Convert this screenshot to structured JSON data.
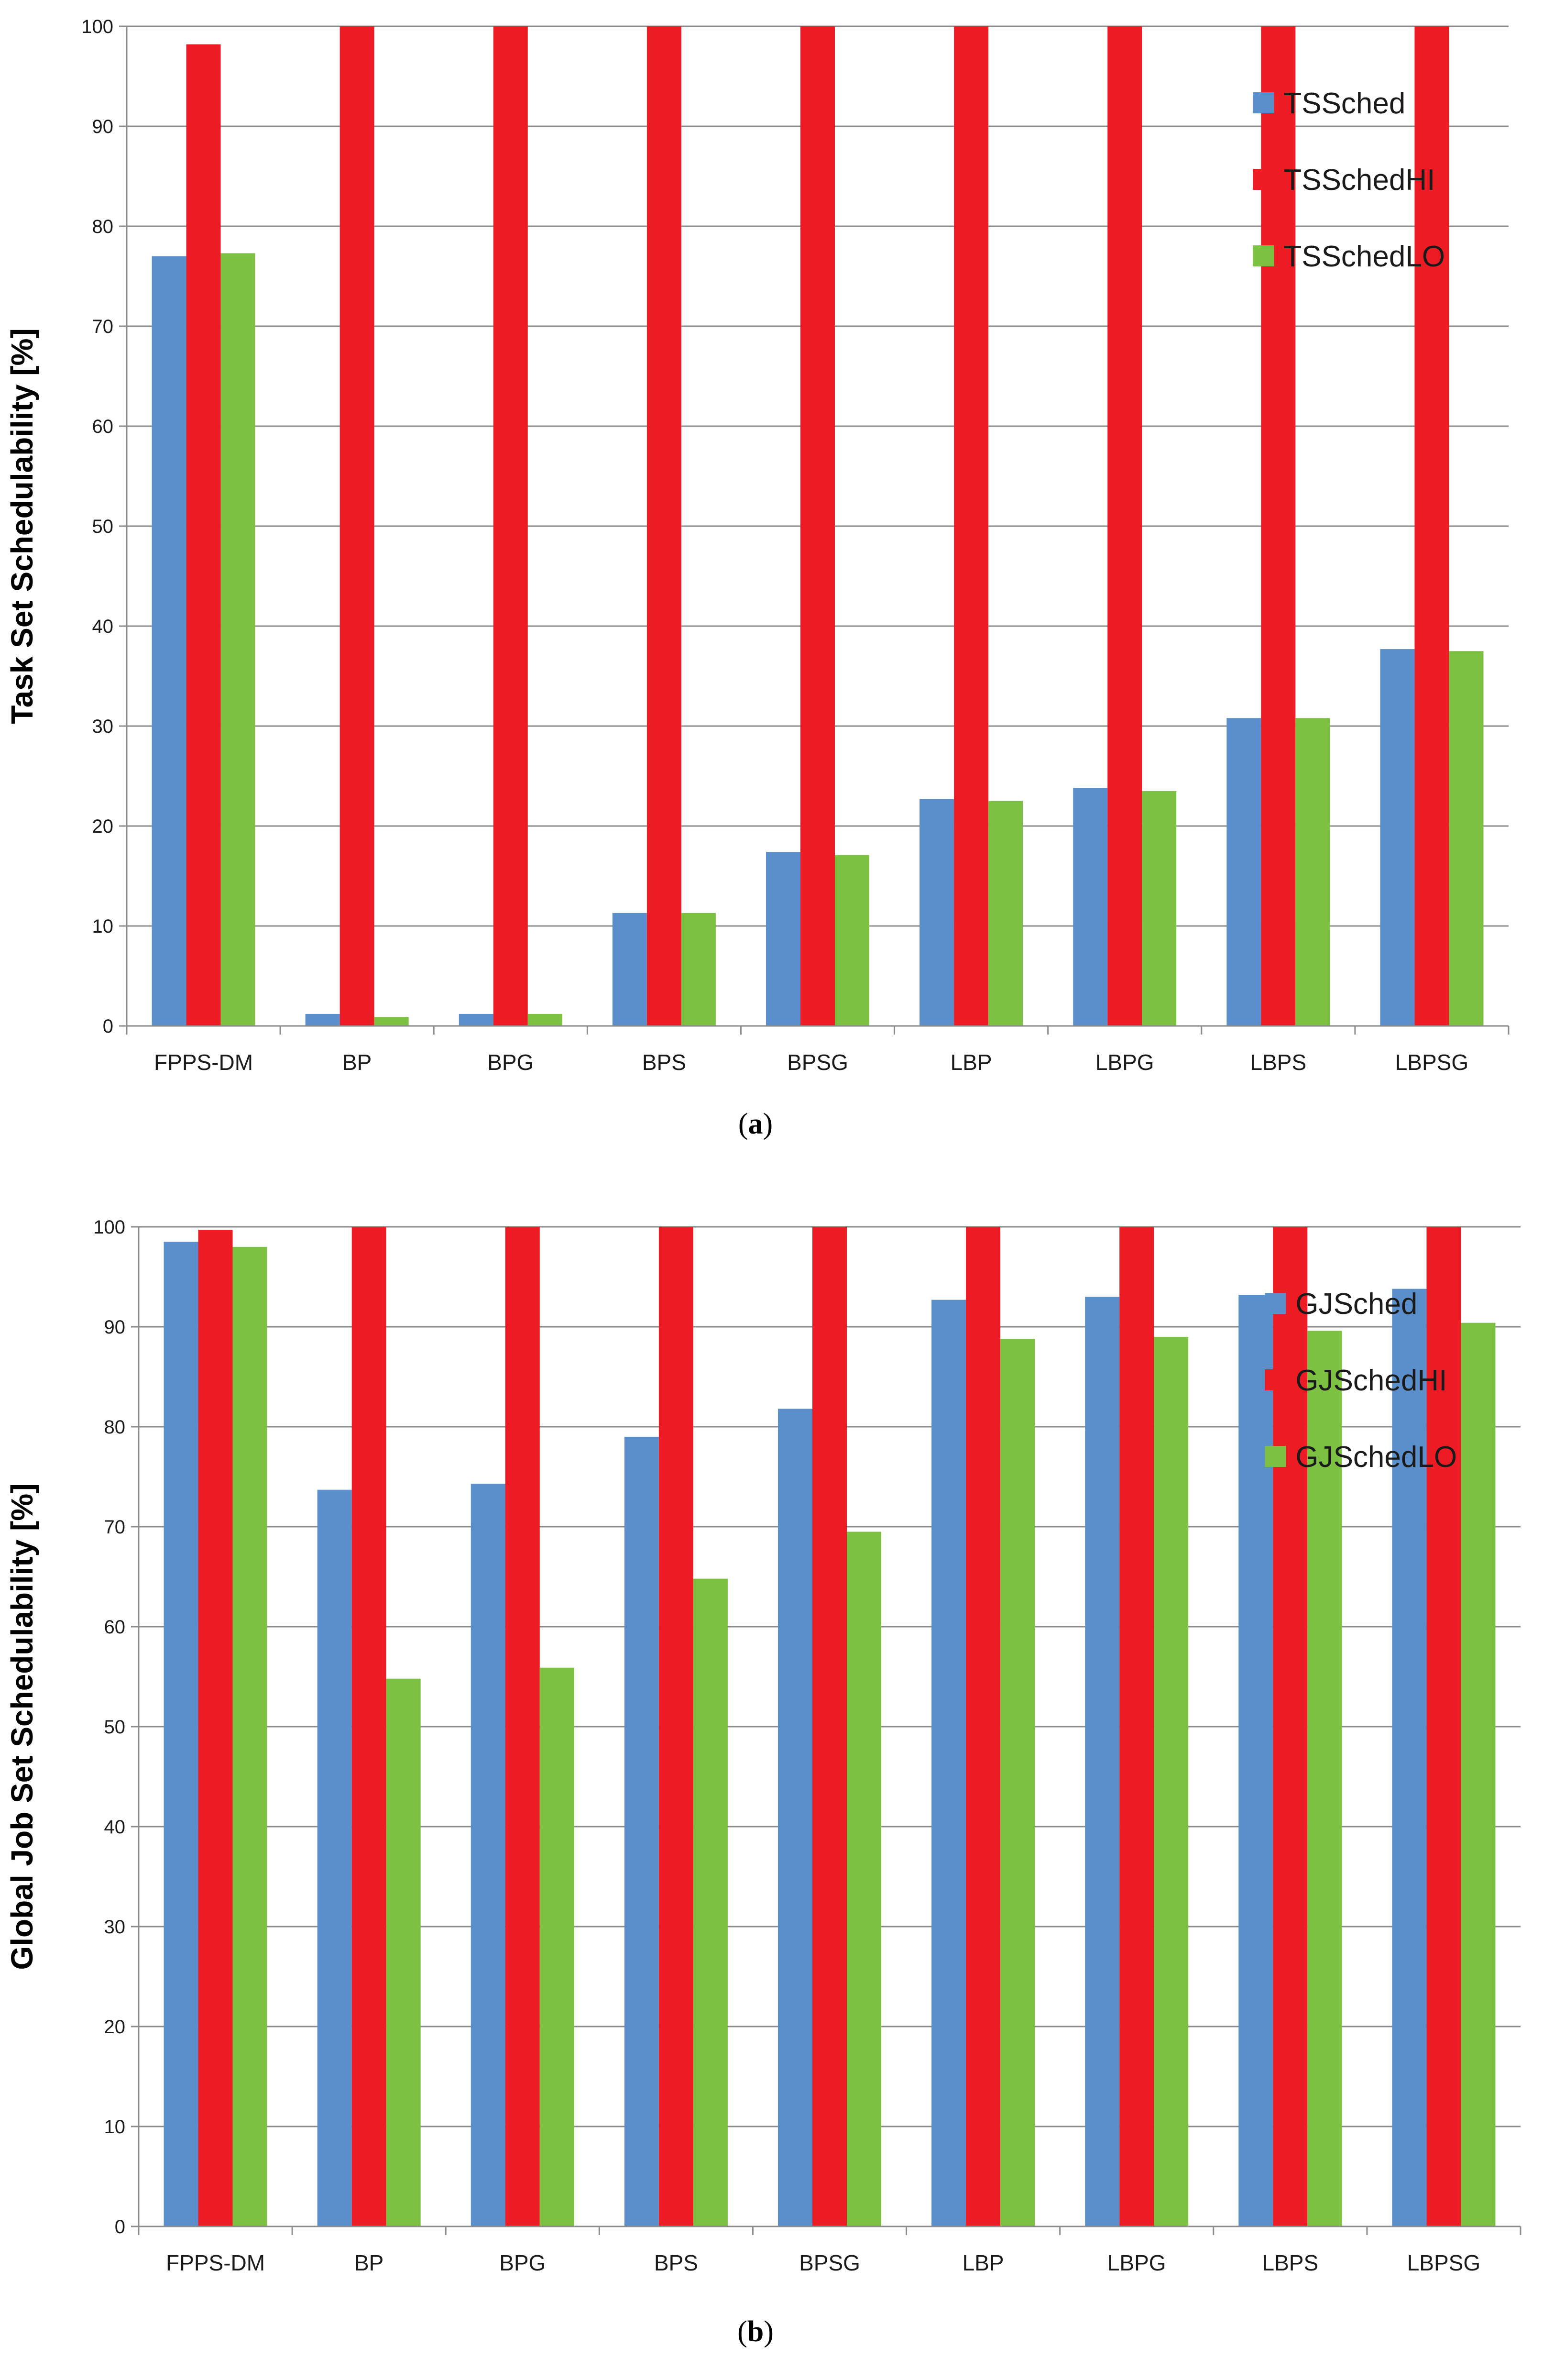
{
  "chart_data": [
    {
      "type": "bar",
      "caption_label": "a",
      "ylabel": "Task Set Schedulability  [%]",
      "xlabel": "",
      "ylim": [
        0,
        100
      ],
      "yticks": [
        0,
        10,
        20,
        30,
        40,
        50,
        60,
        70,
        80,
        90,
        100
      ],
      "grid": true,
      "legend_position": "top-right",
      "categories": [
        "FPPS-DM",
        "BP",
        "BPG",
        "BPS",
        "BPSG",
        "LBP",
        "LBPG",
        "LBPS",
        "LBPSG"
      ],
      "series": [
        {
          "name": "TSSched",
          "color": "#5a8fcc",
          "values": [
            77,
            1.2,
            1.2,
            11.3,
            17.4,
            22.7,
            23.8,
            30.8,
            37.7
          ]
        },
        {
          "name": "TSSchedHI",
          "color": "#ed1c24",
          "values": [
            98.2,
            100,
            100,
            100,
            100,
            100,
            100,
            100,
            100
          ]
        },
        {
          "name": "TSSchedLO",
          "color": "#7cc142",
          "values": [
            77.3,
            0.9,
            1.2,
            11.3,
            17.1,
            22.5,
            23.5,
            30.8,
            37.5
          ]
        }
      ]
    },
    {
      "type": "bar",
      "caption_label": "b",
      "ylabel": "Global Job Set Schedulability  [%]",
      "xlabel": "",
      "ylim": [
        0,
        100
      ],
      "yticks": [
        0,
        10,
        20,
        30,
        40,
        50,
        60,
        70,
        80,
        90,
        100
      ],
      "grid": true,
      "legend_position": "top-right",
      "categories": [
        "FPPS-DM",
        "BP",
        "BPG",
        "BPS",
        "BPSG",
        "LBP",
        "LBPG",
        "LBPS",
        "LBPSG"
      ],
      "series": [
        {
          "name": "GJSched",
          "color": "#5a8fcc",
          "values": [
            98.5,
            73.7,
            74.3,
            79,
            81.8,
            92.7,
            93,
            93.2,
            93.8
          ]
        },
        {
          "name": "GJSchedHI",
          "color": "#ed1c24",
          "values": [
            99.7,
            100,
            100,
            100,
            100,
            100,
            100,
            100,
            100
          ]
        },
        {
          "name": "GJSchedLO",
          "color": "#7cc142",
          "values": [
            98,
            54.8,
            55.9,
            64.8,
            69.5,
            88.8,
            89,
            89.6,
            90.4
          ]
        }
      ]
    }
  ]
}
